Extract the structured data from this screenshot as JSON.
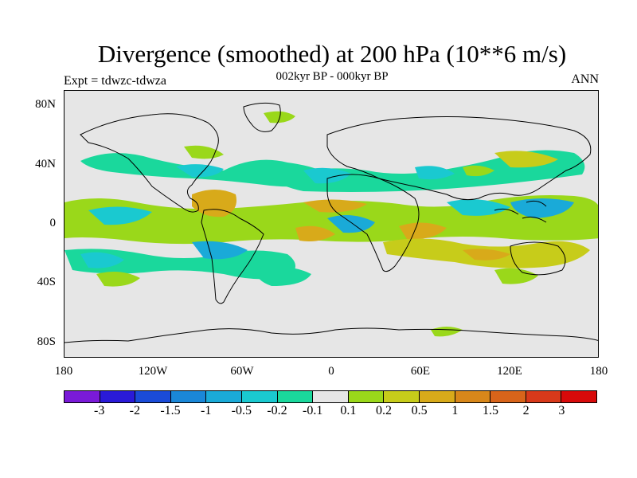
{
  "title": "Divergence (smoothed) at 200 hPa (10**6 m/s)",
  "subtitle": "002kyr BP - 000kyr BP",
  "left_label": "Expt = tdwzc-tdwza",
  "right_label": "ANN",
  "lat_labels": [
    "80N",
    "40N",
    "0",
    "40S",
    "80S"
  ],
  "lon_labels": [
    "180",
    "120W",
    "60W",
    "0",
    "60E",
    "120E",
    "180"
  ],
  "colorbar": {
    "colors": [
      "#7a1ad8",
      "#2a1ad8",
      "#1a4bd8",
      "#1a87d8",
      "#1aaad8",
      "#1ac9d0",
      "#1ad89c",
      "#e6e6e6",
      "#9ad81a",
      "#c7cc1a",
      "#d8aa1a",
      "#d8871a",
      "#d8641a",
      "#d8391a",
      "#d80a0a"
    ],
    "labels": [
      "-3",
      "-2",
      "-1.5",
      "-1",
      "-0.5",
      "-0.2",
      "-0.1",
      "0.1",
      "0.2",
      "0.5",
      "1",
      "1.5",
      "2",
      "3"
    ]
  }
}
